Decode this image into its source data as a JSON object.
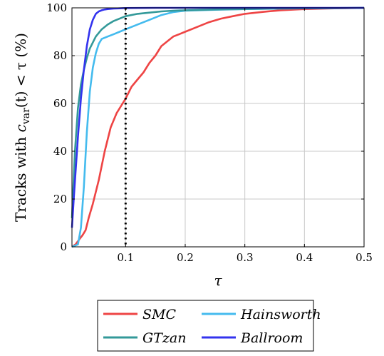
{
  "chart_data": {
    "type": "line",
    "title": "",
    "xlabel": "τ",
    "ylabel_prefix": "Tracks with ",
    "ylabel_var": "c",
    "ylabel_sub": "var",
    "ylabel_func": "(t) < τ",
    "ylabel_suffix": " (%)",
    "xlim": [
      0.01,
      0.5
    ],
    "ylim": [
      0,
      100
    ],
    "grid": true,
    "legend_position": "bottom-outside",
    "xticks": [
      0.1,
      0.2,
      0.3,
      0.4,
      0.5
    ],
    "xtick_labels": [
      "0.1",
      "0.2",
      "0.3",
      "0.4",
      "0.5"
    ],
    "yticks": [
      0,
      20,
      40,
      60,
      80,
      100
    ],
    "ytick_labels": [
      "0",
      "20",
      "40",
      "60",
      "80",
      "100"
    ],
    "threshold_line": {
      "x": 0.1,
      "style": "dotted",
      "color": "#000000"
    },
    "series": [
      {
        "name": "SMC",
        "color": "#ee4444",
        "x": [
          0.01,
          0.016,
          0.022,
          0.028,
          0.033,
          0.038,
          0.045,
          0.055,
          0.065,
          0.075,
          0.085,
          0.095,
          0.1,
          0.11,
          0.12,
          0.13,
          0.14,
          0.15,
          0.16,
          0.17,
          0.18,
          0.19,
          0.2,
          0.22,
          0.24,
          0.26,
          0.28,
          0.3,
          0.33,
          0.36,
          0.4,
          0.45,
          0.5
        ],
        "values": [
          0,
          1,
          3,
          5,
          7,
          12,
          18,
          28,
          40,
          50,
          56,
          60,
          62,
          67,
          70,
          73,
          77,
          80,
          84,
          86,
          88,
          89,
          90,
          92,
          94,
          95.5,
          96.5,
          97.5,
          98.3,
          99,
          99.5,
          99.8,
          100
        ]
      },
      {
        "name": "Hainsworth",
        "color": "#44bbee",
        "x": [
          0.01,
          0.02,
          0.025,
          0.03,
          0.035,
          0.04,
          0.045,
          0.05,
          0.055,
          0.06,
          0.07,
          0.08,
          0.09,
          0.1,
          0.12,
          0.14,
          0.16,
          0.18,
          0.2,
          0.25,
          0.3,
          0.4,
          0.5
        ],
        "values": [
          0,
          1,
          8,
          25,
          48,
          65,
          75,
          81,
          85,
          87,
          88,
          89,
          90,
          91,
          93,
          95,
          97,
          98.2,
          98.8,
          99.2,
          99.5,
          99.8,
          100
        ]
      },
      {
        "name": "GTzan",
        "color": "#339999",
        "x": [
          0.01,
          0.015,
          0.02,
          0.025,
          0.03,
          0.035,
          0.04,
          0.05,
          0.06,
          0.07,
          0.08,
          0.09,
          0.1,
          0.12,
          0.14,
          0.16,
          0.18,
          0.2,
          0.25,
          0.3,
          0.35,
          0.4,
          0.5
        ],
        "values": [
          12,
          40,
          58,
          68,
          74,
          79,
          83,
          88,
          91,
          93,
          94.5,
          95.5,
          96.5,
          97.5,
          98,
          98.5,
          98.8,
          99,
          99.3,
          99.5,
          99.7,
          99.8,
          100
        ]
      },
      {
        "name": "Ballroom",
        "color": "#3333ee",
        "x": [
          0.01,
          0.013,
          0.017,
          0.02,
          0.025,
          0.03,
          0.035,
          0.04,
          0.045,
          0.05,
          0.055,
          0.06,
          0.065,
          0.07,
          0.08,
          0.09,
          0.1,
          0.15,
          0.2,
          0.3,
          0.5
        ],
        "values": [
          8,
          20,
          35,
          46,
          62,
          74,
          84,
          91,
          95,
          97.5,
          98.5,
          99,
          99.3,
          99.5,
          99.7,
          99.8,
          99.9,
          100,
          100,
          100,
          100
        ]
      }
    ],
    "legend_entries": [
      "SMC",
      "Hainsworth",
      "GTzan",
      "Ballroom"
    ]
  }
}
